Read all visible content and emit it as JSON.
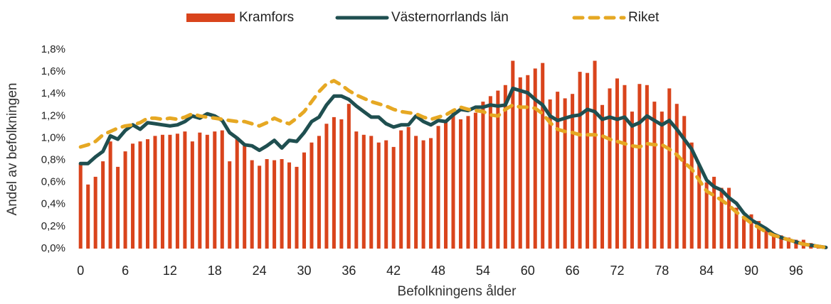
{
  "chart_data": {
    "type": "bar_line",
    "x_label": "Befolkningens ålder",
    "y_label": "Andel av befolkningen",
    "x": [
      0,
      1,
      2,
      3,
      4,
      5,
      6,
      7,
      8,
      9,
      10,
      11,
      12,
      13,
      14,
      15,
      16,
      17,
      18,
      19,
      20,
      21,
      22,
      23,
      24,
      25,
      26,
      27,
      28,
      29,
      30,
      31,
      32,
      33,
      34,
      35,
      36,
      37,
      38,
      39,
      40,
      41,
      42,
      43,
      44,
      45,
      46,
      47,
      48,
      49,
      50,
      51,
      52,
      53,
      54,
      55,
      56,
      57,
      58,
      59,
      60,
      61,
      62,
      63,
      64,
      65,
      66,
      67,
      68,
      69,
      70,
      71,
      72,
      73,
      74,
      75,
      76,
      77,
      78,
      79,
      80,
      81,
      82,
      83,
      84,
      85,
      86,
      87,
      88,
      89,
      90,
      91,
      92,
      93,
      94,
      95,
      96,
      97,
      98,
      99,
      100
    ],
    "xlim": [
      -0.5,
      100.5
    ],
    "xticks": [
      0,
      6,
      12,
      18,
      24,
      30,
      36,
      42,
      48,
      54,
      60,
      66,
      72,
      78,
      84,
      90,
      96
    ],
    "ylim": [
      0,
      1.8
    ],
    "yticks": [
      {
        "value": 0,
        "label": "0,0%"
      },
      {
        "value": 0.2,
        "label": "0,2%"
      },
      {
        "value": 0.4,
        "label": "0,4%"
      },
      {
        "value": 0.6,
        "label": "0,6%"
      },
      {
        "value": 0.8,
        "label": "0,8%"
      },
      {
        "value": 1.0,
        "label": "1,0%"
      },
      {
        "value": 1.2,
        "label": "1,2%"
      },
      {
        "value": 1.4,
        "label": "1,4%"
      },
      {
        "value": 1.6,
        "label": "1,6%"
      },
      {
        "value": 1.8,
        "label": "1,8%"
      }
    ],
    "grid": false,
    "legend": "top",
    "series": [
      {
        "name": "Kramfors",
        "type": "bar",
        "color": "#d9441c",
        "values": [
          0.77,
          0.58,
          0.65,
          0.79,
          0.97,
          0.74,
          0.88,
          0.95,
          0.97,
          0.99,
          1.02,
          1.03,
          1.03,
          1.04,
          1.06,
          0.97,
          1.05,
          1.03,
          1.06,
          1.07,
          0.79,
          1.0,
          0.93,
          0.8,
          0.75,
          0.81,
          0.8,
          0.81,
          0.78,
          0.74,
          0.87,
          0.96,
          1.02,
          1.13,
          1.19,
          1.17,
          1.31,
          1.06,
          1.03,
          1.02,
          0.96,
          0.98,
          0.92,
          1.07,
          1.1,
          1.02,
          0.98,
          1.0,
          1.11,
          1.15,
          1.23,
          1.17,
          1.2,
          1.23,
          1.33,
          1.38,
          1.43,
          1.48,
          1.7,
          1.55,
          1.57,
          1.63,
          1.68,
          1.35,
          1.42,
          1.36,
          1.4,
          1.6,
          1.59,
          1.7,
          1.3,
          1.45,
          1.54,
          1.48,
          1.24,
          1.49,
          1.48,
          1.33,
          1.24,
          1.45,
          1.31,
          1.2,
          0.96,
          0.76,
          0.6,
          0.65,
          0.55,
          0.55,
          0.37,
          0.28,
          0.31,
          0.25,
          0.17,
          0.14,
          0.12,
          0.1,
          0.08,
          0.08,
          0.05,
          0.03,
          0.02
        ]
      },
      {
        "name": "Västernorrlands län",
        "type": "line",
        "color": "#1f4f50",
        "values": [
          0.77,
          0.77,
          0.83,
          0.88,
          1.02,
          0.99,
          1.07,
          1.12,
          1.08,
          1.14,
          1.13,
          1.12,
          1.11,
          1.12,
          1.15,
          1.2,
          1.18,
          1.22,
          1.2,
          1.16,
          1.05,
          1.0,
          0.94,
          0.93,
          0.89,
          0.93,
          0.98,
          0.91,
          0.98,
          0.97,
          1.05,
          1.15,
          1.19,
          1.3,
          1.38,
          1.38,
          1.35,
          1.29,
          1.24,
          1.19,
          1.19,
          1.13,
          1.1,
          1.12,
          1.12,
          1.2,
          1.15,
          1.12,
          1.16,
          1.15,
          1.21,
          1.26,
          1.25,
          1.28,
          1.28,
          1.3,
          1.29,
          1.3,
          1.45,
          1.43,
          1.41,
          1.35,
          1.3,
          1.2,
          1.16,
          1.18,
          1.2,
          1.21,
          1.26,
          1.24,
          1.17,
          1.19,
          1.17,
          1.19,
          1.11,
          1.14,
          1.2,
          1.16,
          1.12,
          1.16,
          1.08,
          0.99,
          0.9,
          0.76,
          0.62,
          0.56,
          0.53,
          0.46,
          0.41,
          0.32,
          0.26,
          0.22,
          0.18,
          0.13,
          0.1,
          0.08,
          0.06,
          0.04,
          0.03,
          0.02,
          0.01
        ]
      },
      {
        "name": "Riket",
        "type": "line",
        "dashed": true,
        "color": "#e6a823",
        "values": [
          0.92,
          0.94,
          0.97,
          1.03,
          1.06,
          1.09,
          1.11,
          1.12,
          1.14,
          1.18,
          1.18,
          1.17,
          1.18,
          1.17,
          1.19,
          1.22,
          1.2,
          1.19,
          1.18,
          1.17,
          1.16,
          1.15,
          1.15,
          1.13,
          1.11,
          1.14,
          1.18,
          1.15,
          1.13,
          1.18,
          1.24,
          1.33,
          1.42,
          1.49,
          1.52,
          1.48,
          1.43,
          1.39,
          1.36,
          1.33,
          1.31,
          1.29,
          1.26,
          1.24,
          1.23,
          1.22,
          1.19,
          1.17,
          1.19,
          1.21,
          1.25,
          1.28,
          1.26,
          1.25,
          1.24,
          1.21,
          1.2,
          1.26,
          1.3,
          1.28,
          1.28,
          1.27,
          1.22,
          1.14,
          1.08,
          1.06,
          1.05,
          1.03,
          1.03,
          1.03,
          1.02,
          0.99,
          0.97,
          0.95,
          0.93,
          0.92,
          0.95,
          0.94,
          0.94,
          0.9,
          0.85,
          0.78,
          0.72,
          0.62,
          0.52,
          0.48,
          0.44,
          0.39,
          0.33,
          0.28,
          0.23,
          0.19,
          0.15,
          0.12,
          0.1,
          0.08,
          0.06,
          0.04,
          0.03,
          0.02,
          0.01
        ]
      }
    ]
  }
}
